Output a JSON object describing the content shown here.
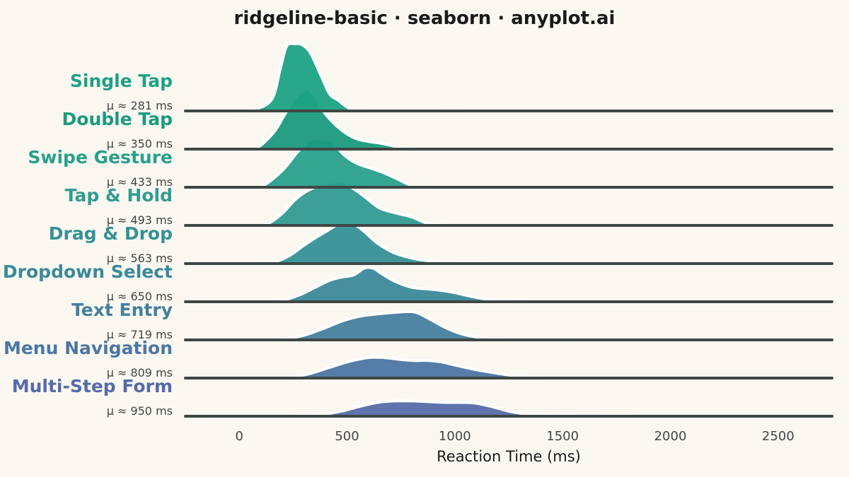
{
  "chart_data": {
    "type": "area",
    "subtype": "ridgeline",
    "title": "ridgeline-basic · seaborn · anyplot.ai",
    "xlabel": "Reaction Time (ms)",
    "ylabel": "",
    "xlim": [
      -250,
      2750
    ],
    "xticks": [
      0,
      500,
      1000,
      1500,
      2000,
      2500
    ],
    "grid": false,
    "legend": "none",
    "series": [
      {
        "name": "Single Tap",
        "mean_label": "μ ≈ 281 ms",
        "color": "#1ea284",
        "x": [
          -20,
          60,
          150,
          190,
          220,
          260,
          290,
          330,
          380,
          420,
          460,
          490,
          520,
          560,
          620,
          900,
          980,
          1060
        ],
        "density": [
          0,
          0.01,
          0.15,
          0.55,
          0.85,
          0.88,
          0.87,
          0.76,
          0.46,
          0.22,
          0.14,
          0.07,
          0.02,
          0.006,
          0,
          0,
          0.01,
          0
        ]
      },
      {
        "name": "Double Tap",
        "mean_label": "μ ≈ 350 ms",
        "color": "#1b9a7e",
        "x": [
          20,
          80,
          160,
          210,
          260,
          300,
          320,
          350,
          400,
          470,
          540,
          600,
          650,
          700,
          760,
          820
        ],
        "density": [
          0,
          0.01,
          0.22,
          0.45,
          0.67,
          0.77,
          0.78,
          0.7,
          0.46,
          0.26,
          0.14,
          0.1,
          0.08,
          0.05,
          0.01,
          0
        ]
      },
      {
        "name": "Swipe Gesture",
        "mean_label": "μ ≈ 433 ms",
        "color": "#28a08b",
        "x": [
          50,
          110,
          200,
          270,
          330,
          370,
          400,
          440,
          480,
          540,
          610,
          670,
          740,
          800,
          860
        ],
        "density": [
          0,
          0.02,
          0.22,
          0.46,
          0.62,
          0.63,
          0.62,
          0.58,
          0.44,
          0.32,
          0.25,
          0.19,
          0.1,
          0.02,
          0
        ]
      },
      {
        "name": "Tap & Hold",
        "mean_label": "μ ≈ 493 ms",
        "color": "#329b92",
        "x": [
          60,
          130,
          200,
          260,
          320,
          380,
          440,
          480,
          520,
          580,
          650,
          730,
          800,
          880,
          960,
          1050
        ],
        "density": [
          0,
          0.02,
          0.16,
          0.34,
          0.46,
          0.53,
          0.57,
          0.57,
          0.5,
          0.38,
          0.23,
          0.16,
          0.11,
          0.02,
          0.005,
          0
        ]
      },
      {
        "name": "Drag & Drop",
        "mean_label": "μ ≈ 563 ms",
        "color": "#359196",
        "x": [
          80,
          150,
          230,
          300,
          360,
          420,
          460,
          490,
          530,
          580,
          640,
          720,
          820,
          930,
          1050,
          1200,
          1400,
          1500
        ],
        "density": [
          0,
          0.01,
          0.1,
          0.24,
          0.35,
          0.45,
          0.52,
          0.54,
          0.52,
          0.42,
          0.27,
          0.14,
          0.06,
          0.025,
          0.01,
          0.005,
          0.002,
          0
        ]
      },
      {
        "name": "Dropdown Select",
        "mean_label": "μ ≈ 650 ms",
        "color": "#3b8999",
        "x": [
          100,
          190,
          280,
          360,
          420,
          470,
          530,
          580,
          620,
          660,
          720,
          800,
          900,
          980,
          1060,
          1150,
          1240,
          1320,
          1500
        ],
        "density": [
          0,
          0.01,
          0.09,
          0.2,
          0.28,
          0.32,
          0.35,
          0.44,
          0.44,
          0.37,
          0.27,
          0.19,
          0.16,
          0.13,
          0.08,
          0.03,
          0.01,
          0.003,
          0
        ]
      },
      {
        "name": "Text Entry",
        "mean_label": "μ ≈ 719 ms",
        "color": "#457f9e",
        "x": [
          100,
          200,
          300,
          400,
          480,
          560,
          640,
          720,
          780,
          820,
          880,
          950,
          1030,
          1120,
          1200,
          1260,
          1400,
          1600,
          1700
        ],
        "density": [
          0,
          0.01,
          0.06,
          0.16,
          0.25,
          0.31,
          0.34,
          0.36,
          0.37,
          0.36,
          0.28,
          0.17,
          0.08,
          0.03,
          0.01,
          0.004,
          0.002,
          0.001,
          0
        ]
      },
      {
        "name": "Menu Navigation",
        "mean_label": "μ ≈ 809 ms",
        "color": "#4c76a3",
        "x": [
          150,
          240,
          330,
          420,
          500,
          560,
          610,
          660,
          700,
          760,
          820,
          880,
          940,
          1000,
          1080,
          1160,
          1250,
          1350,
          1450,
          1600,
          1800,
          2000,
          2200
        ],
        "density": [
          0,
          0.01,
          0.06,
          0.14,
          0.21,
          0.25,
          0.27,
          0.27,
          0.26,
          0.24,
          0.23,
          0.23,
          0.21,
          0.17,
          0.12,
          0.08,
          0.04,
          0.015,
          0.005,
          0.002,
          0.001,
          0.001,
          0
        ]
      },
      {
        "name": "Multi-Step Form",
        "mean_label": "μ ≈ 950 ms",
        "color": "#566ba8",
        "x": [
          200,
          300,
          400,
          480,
          560,
          640,
          720,
          800,
          880,
          960,
          1040,
          1100,
          1180,
          1260,
          1350,
          1450,
          1550,
          1650,
          1750,
          1850,
          2000,
          2300
        ],
        "density": [
          0,
          0.005,
          0.03,
          0.07,
          0.13,
          0.18,
          0.2,
          0.2,
          0.19,
          0.18,
          0.18,
          0.17,
          0.12,
          0.06,
          0.025,
          0.015,
          0.015,
          0.01,
          0.005,
          0.001,
          0.0005,
          0
        ]
      }
    ]
  }
}
